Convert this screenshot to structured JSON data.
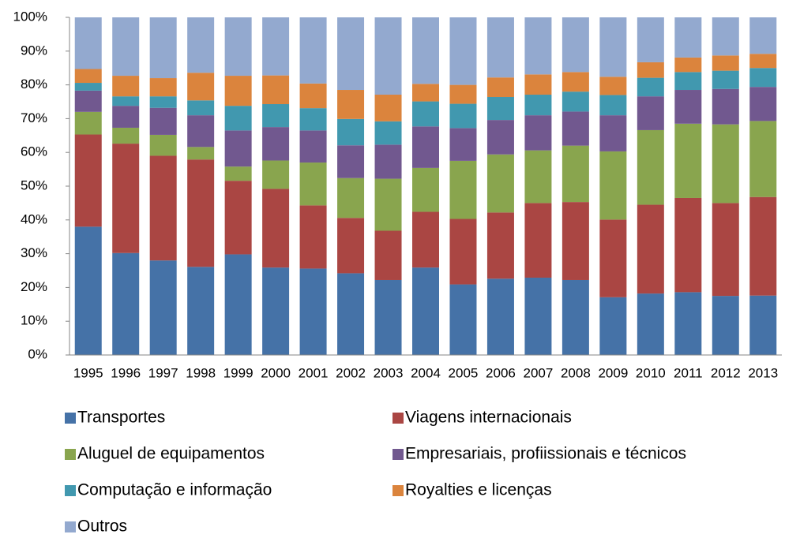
{
  "chart_data": {
    "type": "stacked_bar",
    "categories": [
      "1995",
      "1996",
      "1997",
      "1998",
      "1999",
      "2000",
      "2001",
      "2002",
      "2003",
      "2004",
      "2005",
      "2006",
      "2007",
      "2008",
      "2009",
      "2010",
      "2011",
      "2012",
      "2013"
    ],
    "series": [
      {
        "name": "Transportes",
        "color": "#4572a7",
        "values": [
          38,
          30.2,
          28,
          26.1,
          29.8,
          25.9,
          25.6,
          24.2,
          22.2,
          25.9,
          20.9,
          22.6,
          22.9,
          22.2,
          17.1,
          18.2,
          18.6,
          17.5,
          17.6
        ]
      },
      {
        "name": "Viagens internacionais",
        "color": "#aa4643",
        "values": [
          27.3,
          32.4,
          31,
          31.8,
          21.8,
          23.3,
          18.7,
          16.4,
          14.6,
          16.5,
          19.4,
          19.6,
          22.1,
          23.1,
          23,
          26.3,
          27.9,
          27.5,
          29.2
        ]
      },
      {
        "name": "Aluguel de equipamentos",
        "color": "#89a54e",
        "values": [
          6.7,
          4.7,
          6.2,
          3.7,
          4.2,
          8.4,
          12.7,
          11.8,
          15.4,
          13,
          17.2,
          17.2,
          15.6,
          16.7,
          20.2,
          22.1,
          22,
          23.3,
          22.5
        ]
      },
      {
        "name": "Empresariais, profiissionais e técnicos",
        "color": "#71588f",
        "values": [
          6.3,
          6.5,
          8,
          9.4,
          10.7,
          9.9,
          9.5,
          9.7,
          10.1,
          12.3,
          9.7,
          10.2,
          10.4,
          10.1,
          10.7,
          10,
          10,
          10.5,
          10.1
        ]
      },
      {
        "name": "Computação e informação",
        "color": "#4198af",
        "values": [
          2.3,
          2.8,
          3.4,
          4.4,
          7.3,
          6.8,
          6.6,
          7.8,
          6.9,
          7.4,
          7.2,
          6.8,
          6.1,
          5.9,
          6,
          5.5,
          5.3,
          5.4,
          5.6
        ]
      },
      {
        "name": "Royalties e licenças",
        "color": "#db843d",
        "values": [
          4.1,
          6.1,
          5.4,
          8.2,
          8.9,
          8.5,
          7.3,
          8.6,
          7.9,
          5.2,
          5.6,
          5.8,
          6,
          5.8,
          5.4,
          4.6,
          4.3,
          4.5,
          4.2
        ]
      },
      {
        "name": "Outros",
        "color": "#93a9cf",
        "values": [
          15.3,
          17.3,
          18,
          16.4,
          17.3,
          17.2,
          19.6,
          21.5,
          22.9,
          19.7,
          20,
          17.8,
          16.9,
          16.2,
          17.6,
          13.3,
          11.9,
          11.3,
          10.8
        ]
      }
    ],
    "ylim": [
      0,
      100
    ],
    "yticks": [
      {
        "value": 0,
        "label": "0%"
      },
      {
        "value": 10,
        "label": "10%"
      },
      {
        "value": 20,
        "label": "20%"
      },
      {
        "value": 30,
        "label": "30%"
      },
      {
        "value": 40,
        "label": "40%"
      },
      {
        "value": 50,
        "label": "50%"
      },
      {
        "value": 60,
        "label": "60%"
      },
      {
        "value": 70,
        "label": "70%"
      },
      {
        "value": 80,
        "label": "80%"
      },
      {
        "value": 90,
        "label": "90%"
      },
      {
        "value": 100,
        "label": "100%"
      }
    ]
  }
}
